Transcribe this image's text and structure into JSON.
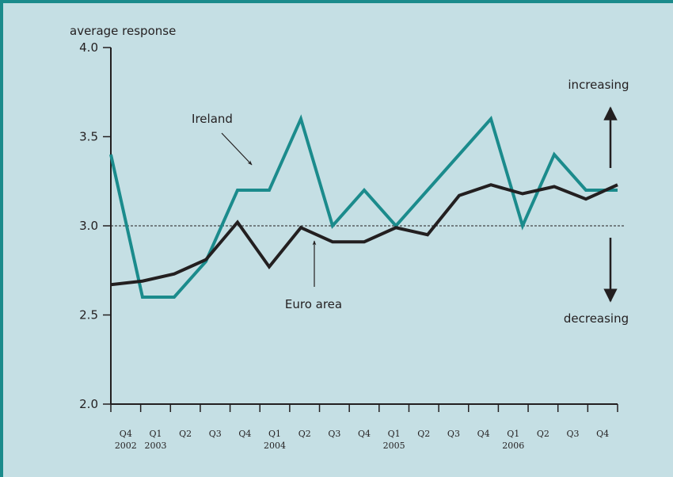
{
  "chart_data": {
    "type": "line",
    "y_axis_label": "average response",
    "categories": [
      "Q4",
      "Q1",
      "Q2",
      "Q3",
      "Q4",
      "Q1",
      "Q2",
      "Q3",
      "Q4",
      "Q1",
      "Q2",
      "Q3",
      "Q4",
      "Q1",
      "Q2",
      "Q3",
      "Q4"
    ],
    "year_labels": [
      "2002",
      "2003",
      null,
      null,
      null,
      "2004",
      null,
      null,
      null,
      "2005",
      null,
      null,
      null,
      "2006",
      null,
      null,
      null
    ],
    "series": [
      {
        "name": "Ireland",
        "color": "#1b8b8c",
        "values": [
          3.4,
          2.6,
          2.6,
          2.8,
          3.2,
          3.2,
          3.6,
          3.0,
          3.2,
          3.0,
          3.2,
          3.4,
          3.6,
          3.0,
          3.4,
          3.2,
          3.2
        ]
      },
      {
        "name": "Euro area",
        "color": "#231f20",
        "values": [
          2.67,
          2.69,
          2.73,
          2.81,
          3.02,
          2.77,
          2.99,
          2.91,
          2.91,
          2.99,
          2.95,
          3.17,
          3.23,
          3.18,
          3.22,
          3.15,
          3.23
        ]
      }
    ],
    "ylim": [
      2.0,
      4.0
    ],
    "yticks": [
      {
        "value": 2,
        "label": "2.0"
      },
      {
        "value": 2.5,
        "label": "2.5"
      },
      {
        "value": 3,
        "label": "3.0"
      },
      {
        "value": 3.5,
        "label": "3.5"
      },
      {
        "value": 4,
        "label": "4.0"
      }
    ],
    "reference_line": 3,
    "annotations": [
      "increasing",
      "decreasing"
    ]
  }
}
